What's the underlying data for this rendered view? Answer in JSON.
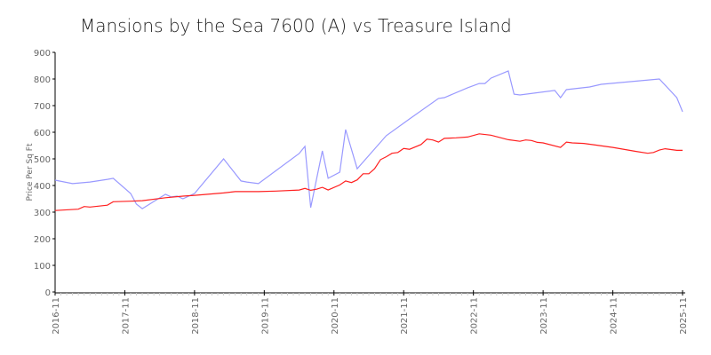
{
  "chart_data": {
    "type": "line",
    "title": "Mansions by the Sea 7600 (A) vs Treasure Island",
    "xlabel": "",
    "ylabel": "Price Per Sq Ft",
    "ylim": [
      0,
      900
    ],
    "yticks": [
      "0",
      "100",
      "200",
      "300",
      "400",
      "500",
      "600",
      "700",
      "800",
      "900"
    ],
    "xlim": [
      "2016-11",
      "2025-11"
    ],
    "xticks": [
      "2016-11",
      "2017-11",
      "2018-11",
      "2019-11",
      "2020-11",
      "2021-11",
      "2022-11",
      "2023-11",
      "2024-11",
      "2025-11"
    ],
    "grid": false,
    "legend": "none",
    "series": [
      {
        "color": "#9999ff",
        "points": [
          [
            "2016-11",
            420
          ],
          [
            "2017-02",
            407
          ],
          [
            "2017-05",
            413
          ],
          [
            "2017-08",
            423
          ],
          [
            "2017-09",
            427
          ],
          [
            "2017-12",
            370
          ],
          [
            "2018-01",
            330
          ],
          [
            "2018-02",
            313
          ],
          [
            "2018-04",
            340
          ],
          [
            "2018-06",
            367
          ],
          [
            "2018-07",
            357
          ],
          [
            "2018-08",
            360
          ],
          [
            "2018-09",
            350
          ],
          [
            "2018-11",
            370
          ],
          [
            "2019-04",
            500
          ],
          [
            "2019-07",
            417
          ],
          [
            "2019-08",
            413
          ],
          [
            "2019-10",
            407
          ],
          [
            "2020-05",
            520
          ],
          [
            "2020-06",
            547
          ],
          [
            "2020-07",
            317
          ],
          [
            "2020-09",
            530
          ],
          [
            "2020-10",
            427
          ],
          [
            "2020-12",
            450
          ],
          [
            "2021-01",
            610
          ],
          [
            "2021-03",
            463
          ],
          [
            "2021-08",
            587
          ],
          [
            "2021-12",
            650
          ],
          [
            "2022-05",
            727
          ],
          [
            "2022-06",
            730
          ],
          [
            "2022-10",
            767
          ],
          [
            "2022-12",
            783
          ],
          [
            "2023-01",
            783
          ],
          [
            "2023-02",
            803
          ],
          [
            "2023-05",
            830
          ],
          [
            "2023-06",
            743
          ],
          [
            "2023-07",
            740
          ],
          [
            "2024-01",
            757
          ],
          [
            "2024-02",
            730
          ],
          [
            "2024-03",
            760
          ],
          [
            "2024-07",
            770
          ],
          [
            "2024-09",
            780
          ],
          [
            "2025-07",
            800
          ],
          [
            "2025-10",
            730
          ],
          [
            "2025-11",
            677
          ]
        ]
      },
      {
        "color": "#ff2020",
        "points": [
          [
            "2016-11",
            306
          ],
          [
            "2017-03",
            311
          ],
          [
            "2017-04",
            321
          ],
          [
            "2017-05",
            319
          ],
          [
            "2017-08",
            326
          ],
          [
            "2017-09",
            339
          ],
          [
            "2017-12",
            341
          ],
          [
            "2018-02",
            343
          ],
          [
            "2018-06",
            354
          ],
          [
            "2018-09",
            360
          ],
          [
            "2018-11",
            363
          ],
          [
            "2019-04",
            372
          ],
          [
            "2019-06",
            377
          ],
          [
            "2019-10",
            377
          ],
          [
            "2020-01",
            379
          ],
          [
            "2020-05",
            383
          ],
          [
            "2020-06",
            389
          ],
          [
            "2020-07",
            382
          ],
          [
            "2020-08",
            386
          ],
          [
            "2020-09",
            393
          ],
          [
            "2020-10",
            383
          ],
          [
            "2020-12",
            402
          ],
          [
            "2021-01",
            417
          ],
          [
            "2021-02",
            411
          ],
          [
            "2021-03",
            421
          ],
          [
            "2021-04",
            444
          ],
          [
            "2021-05",
            444
          ],
          [
            "2021-06",
            463
          ],
          [
            "2021-07",
            497
          ],
          [
            "2021-08",
            508
          ],
          [
            "2021-09",
            521
          ],
          [
            "2021-10",
            524
          ],
          [
            "2021-11",
            539
          ],
          [
            "2021-12",
            536
          ],
          [
            "2022-02",
            554
          ],
          [
            "2022-03",
            574
          ],
          [
            "2022-04",
            571
          ],
          [
            "2022-05",
            563
          ],
          [
            "2022-06",
            577
          ],
          [
            "2022-08",
            579
          ],
          [
            "2022-10",
            582
          ],
          [
            "2022-12",
            594
          ],
          [
            "2023-02",
            589
          ],
          [
            "2023-05",
            572
          ],
          [
            "2023-07",
            566
          ],
          [
            "2023-08",
            571
          ],
          [
            "2023-09",
            569
          ],
          [
            "2023-10",
            562
          ],
          [
            "2023-11",
            560
          ],
          [
            "2024-02",
            543
          ],
          [
            "2024-03",
            563
          ],
          [
            "2024-04",
            560
          ],
          [
            "2024-06",
            558
          ],
          [
            "2024-08",
            552
          ],
          [
            "2024-11",
            543
          ],
          [
            "2025-03",
            528
          ],
          [
            "2025-05",
            521
          ],
          [
            "2025-06",
            524
          ],
          [
            "2025-07",
            533
          ],
          [
            "2025-08",
            538
          ],
          [
            "2025-10",
            532
          ],
          [
            "2025-11",
            532
          ]
        ]
      }
    ]
  }
}
